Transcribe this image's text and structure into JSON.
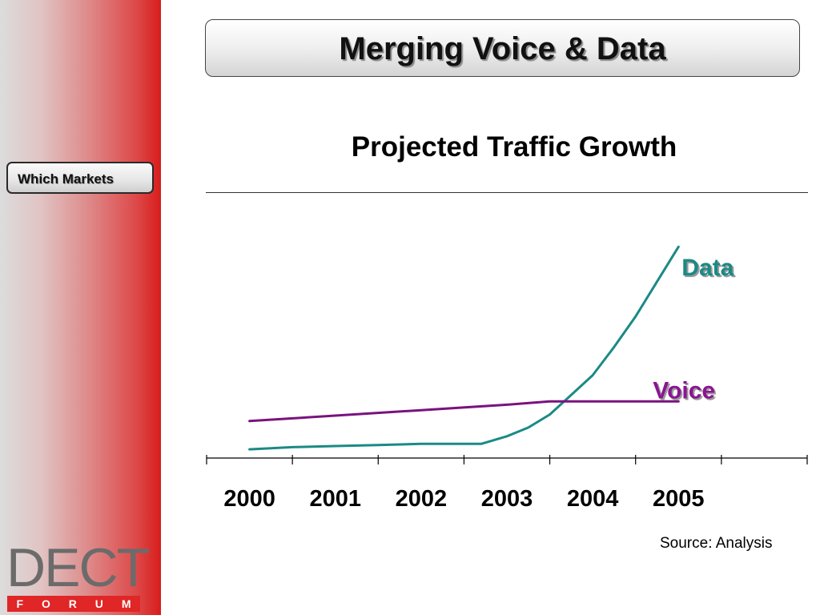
{
  "sidebar": {
    "button_label": "Which Markets",
    "logo_top": "DECT",
    "logo_bottom": [
      "F",
      "O",
      "R",
      "U",
      "M"
    ]
  },
  "title": "Merging Voice & Data",
  "colors": {
    "data_line": "#1a8a86",
    "voice_line": "#7a127e",
    "data_label": "#1a8a86",
    "voice_label": "#8a1591",
    "sidebar_accent": "#d81c1c"
  },
  "source": "Source: Analysis",
  "chart_data": {
    "type": "line",
    "title": "Projected Traffic Growth",
    "xlabel": "",
    "ylabel": "",
    "categories": [
      "2000",
      "2001",
      "2002",
      "2003",
      "2004",
      "2005"
    ],
    "xlim": [
      1999.5,
      2006.5
    ],
    "ylim": [
      0,
      100
    ],
    "grid": false,
    "legend": "inline labels at line ends",
    "series": [
      {
        "name": "Data",
        "x": [
          2000.0,
          2000.5,
          2001.0,
          2001.5,
          2002.0,
          2002.5,
          2002.7,
          2003.0,
          2003.25,
          2003.5,
          2003.75,
          2004.0,
          2004.25,
          2004.5,
          2004.75,
          2005.0
        ],
        "y": [
          4.0,
          5.0,
          5.5,
          6.0,
          6.5,
          6.5,
          6.5,
          10.0,
          14.0,
          20.0,
          29.0,
          38.0,
          51.0,
          65.0,
          81.0,
          97.0
        ]
      },
      {
        "name": "Voice",
        "x": [
          2000.0,
          2001.0,
          2002.0,
          2003.0,
          2003.5,
          2004.0,
          2004.5,
          2005.0
        ],
        "y": [
          17.0,
          19.5,
          22.0,
          24.5,
          26.0,
          26.0,
          26.0,
          26.0
        ]
      }
    ]
  }
}
